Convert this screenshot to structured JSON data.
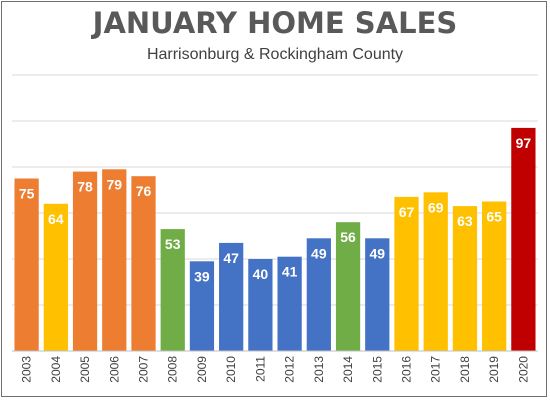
{
  "chart_data": {
    "type": "bar",
    "title": "JANUARY HOME SALES",
    "subtitle": "Harrisonburg & Rockingham County",
    "xlabel": "",
    "ylabel": "",
    "ylim": [
      0,
      120
    ],
    "grid": true,
    "categories": [
      "2003",
      "2004",
      "2005",
      "2006",
      "2007",
      "2008",
      "2009",
      "2010",
      "2011",
      "2012",
      "2013",
      "2014",
      "2015",
      "2016",
      "2017",
      "2018",
      "2019",
      "2020"
    ],
    "values": [
      75,
      64,
      78,
      79,
      76,
      53,
      39,
      47,
      40,
      41,
      49,
      56,
      49,
      67,
      69,
      63,
      65,
      97
    ],
    "bar_colors": [
      "#ED7D31",
      "#FFC000",
      "#ED7D31",
      "#ED7D31",
      "#ED7D31",
      "#70AD47",
      "#4472C4",
      "#4472C4",
      "#4472C4",
      "#4472C4",
      "#4472C4",
      "#70AD47",
      "#4472C4",
      "#FFC000",
      "#FFC000",
      "#FFC000",
      "#FFC000",
      "#C00000"
    ]
  },
  "colors": {
    "gridline": "#d9d9d9",
    "axis": "#bfbfbf",
    "title": "#595959",
    "label": "#ffffff"
  }
}
